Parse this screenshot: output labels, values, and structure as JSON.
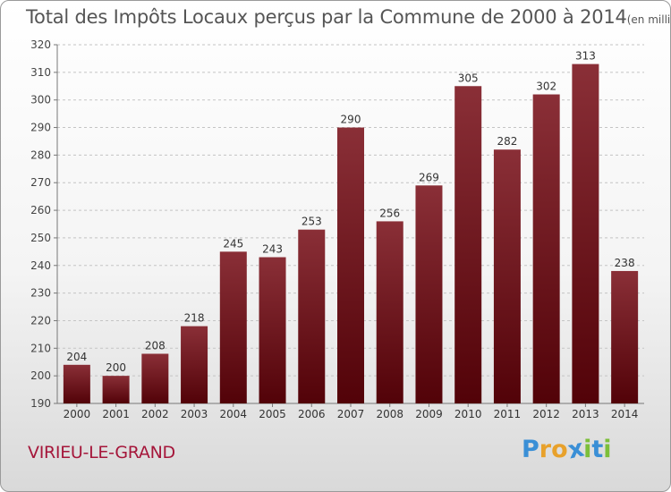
{
  "chart_data": {
    "type": "bar",
    "title": "Total des Impôts Locaux perçus par la Commune de 2000 à 2014",
    "unit_note": "(en milliers d'€)",
    "categories": [
      "2000",
      "2001",
      "2002",
      "2003",
      "2004",
      "2005",
      "2006",
      "2007",
      "2008",
      "2009",
      "2010",
      "2011",
      "2012",
      "2013",
      "2014"
    ],
    "values": [
      204,
      200,
      208,
      218,
      245,
      243,
      253,
      290,
      256,
      269,
      305,
      282,
      302,
      313,
      238
    ],
    "ylim": [
      190,
      320
    ],
    "yticks": [
      190,
      200,
      210,
      220,
      230,
      240,
      250,
      260,
      270,
      280,
      290,
      300,
      310,
      320
    ],
    "xlabel": "",
    "ylabel": "",
    "grid": "horizontal dashed",
    "bar_color": "#6b0f17"
  },
  "commune_name": "VIRIEU-LE-GRAND",
  "logo": {
    "letters": [
      "P",
      "r",
      "o",
      "x",
      "i",
      "t",
      "i"
    ],
    "colors": [
      "#3a8fd6",
      "#e8a12b",
      "#e8a12b",
      "#3a8fd6",
      "#7cbf3a",
      "#3a8fd6",
      "#7cbf3a"
    ]
  }
}
